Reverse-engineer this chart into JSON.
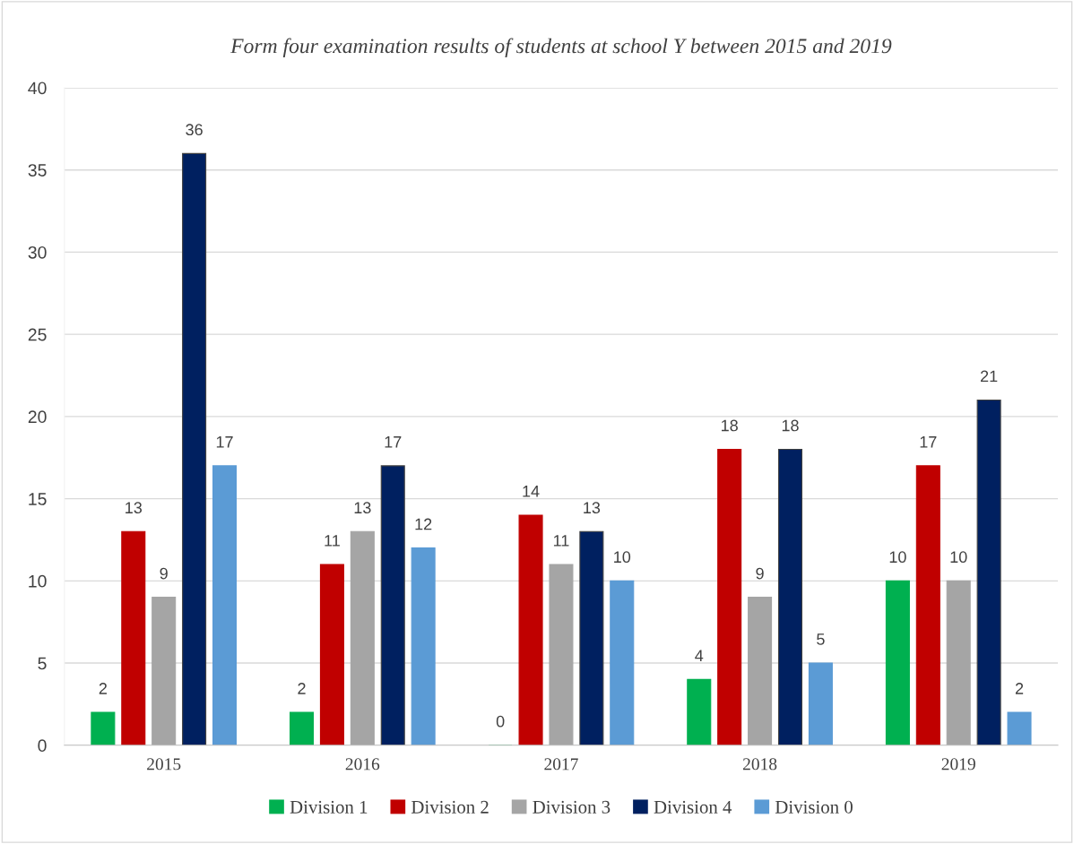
{
  "chart_data": {
    "type": "bar",
    "title": "Form four examination results of students at school Y between 2015 and 2019",
    "categories": [
      "2015",
      "2016",
      "2017",
      "2018",
      "2019"
    ],
    "series": [
      {
        "name": "Division 1",
        "color": "#00b050",
        "values": [
          2,
          2,
          0,
          4,
          10
        ]
      },
      {
        "name": "Division 2",
        "color": "#c00000",
        "values": [
          13,
          11,
          14,
          18,
          17
        ]
      },
      {
        "name": "Division 3",
        "color": "#a5a5a5",
        "values": [
          9,
          13,
          11,
          9,
          10
        ]
      },
      {
        "name": "Division 4",
        "color": "#002060",
        "values": [
          36,
          17,
          13,
          18,
          21
        ]
      },
      {
        "name": "Division 0",
        "color": "#5b9bd5",
        "values": [
          17,
          12,
          10,
          5,
          2
        ]
      }
    ],
    "ylim": [
      0,
      40
    ],
    "yticks": [
      0,
      5,
      10,
      15,
      20,
      25,
      30,
      35,
      40
    ],
    "grid": "y",
    "legend": "bottom",
    "data_labels": true
  }
}
